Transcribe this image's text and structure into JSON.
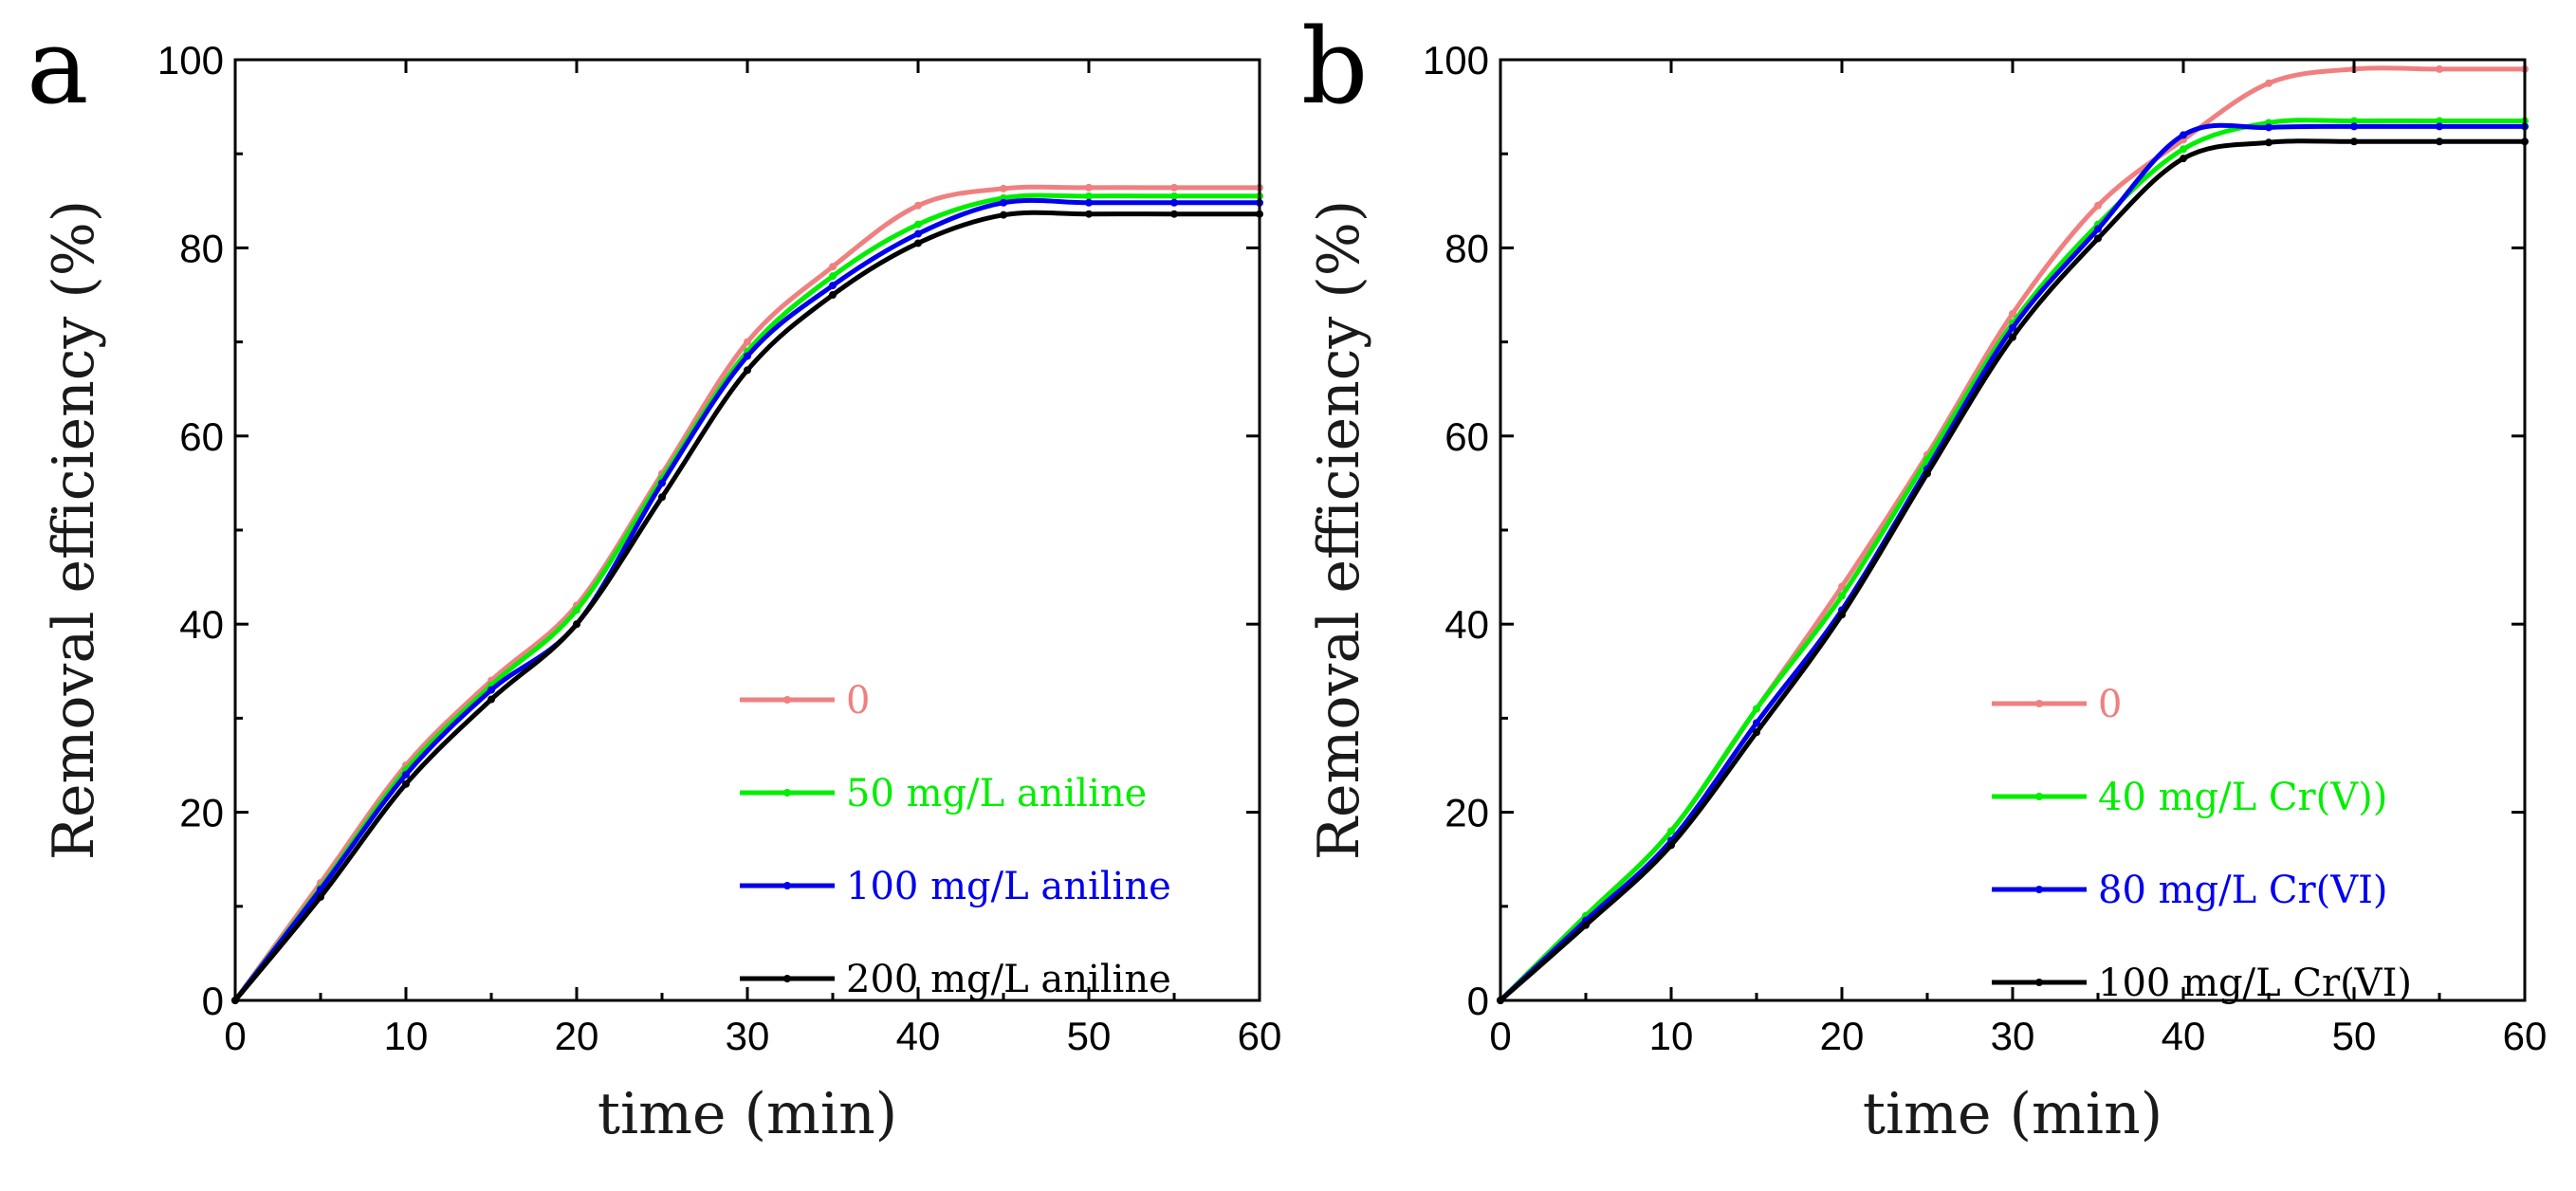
{
  "chart_data": [
    {
      "type": "line",
      "panel_label": "a",
      "title": "",
      "xlabel": "time (min)",
      "ylabel": "Removal efficiency (%)",
      "xlim": [
        0,
        60
      ],
      "ylim": [
        0,
        100
      ],
      "xticks": [
        0,
        10,
        20,
        30,
        40,
        50,
        60
      ],
      "yticks": [
        0,
        20,
        40,
        60,
        80,
        100
      ],
      "x": [
        0,
        5,
        10,
        15,
        20,
        25,
        30,
        35,
        40,
        45,
        50,
        55,
        60
      ],
      "legend_position": "bottom-right",
      "series": [
        {
          "name": "0",
          "color": "#f08080",
          "values": [
            0,
            12.5,
            25,
            34,
            42,
            56,
            70,
            78,
            84.5,
            86.3,
            86.4,
            86.4,
            86.4
          ]
        },
        {
          "name": "50 mg/L aniline",
          "color": "#00ee00",
          "values": [
            0,
            12,
            24.5,
            33.5,
            41.5,
            55.5,
            69,
            77,
            82.5,
            85.3,
            85.5,
            85.5,
            85.5
          ]
        },
        {
          "name": "100 mg/L aniline",
          "color": "#0000ee",
          "values": [
            0,
            11.8,
            24,
            33,
            40,
            55,
            68.5,
            76,
            81.5,
            84.8,
            84.8,
            84.8,
            84.8
          ]
        },
        {
          "name": "200 mg/L aniline",
          "color": "#000000",
          "values": [
            0,
            11,
            23,
            32,
            40,
            53.5,
            67,
            75,
            80.5,
            83.5,
            83.6,
            83.6,
            83.6
          ]
        }
      ]
    },
    {
      "type": "line",
      "panel_label": "b",
      "title": "",
      "xlabel": "time (min)",
      "ylabel": "Removal efficiency (%)",
      "xlim": [
        0,
        60
      ],
      "ylim": [
        0,
        100
      ],
      "xticks": [
        0,
        10,
        20,
        30,
        40,
        50,
        60
      ],
      "yticks": [
        0,
        20,
        40,
        60,
        80,
        100
      ],
      "x": [
        0,
        5,
        10,
        15,
        20,
        25,
        30,
        35,
        40,
        45,
        50,
        55,
        60
      ],
      "legend_position": "bottom-right",
      "series": [
        {
          "name": "0",
          "color": "#f08080",
          "values": [
            0,
            9,
            18,
            31,
            44,
            58,
            73,
            84.5,
            91.5,
            97.5,
            99,
            99,
            99
          ]
        },
        {
          "name": "40 mg/L Cr(V))",
          "color": "#00ee00",
          "values": [
            0,
            9,
            18,
            31,
            43,
            57.5,
            72,
            82.5,
            90.5,
            93.3,
            93.5,
            93.5,
            93.5
          ]
        },
        {
          "name": "80 mg/L Cr(VI)",
          "color": "#0000ee",
          "values": [
            0,
            8.5,
            17,
            29.5,
            41.5,
            56.5,
            71.5,
            82,
            92,
            92.8,
            92.9,
            92.9,
            92.9
          ]
        },
        {
          "name": "100 mg/L Cr(VI)",
          "color": "#000000",
          "values": [
            0,
            8,
            16.5,
            28.5,
            41,
            56,
            70.5,
            81,
            89.5,
            91.2,
            91.3,
            91.3,
            91.3
          ]
        }
      ]
    }
  ]
}
